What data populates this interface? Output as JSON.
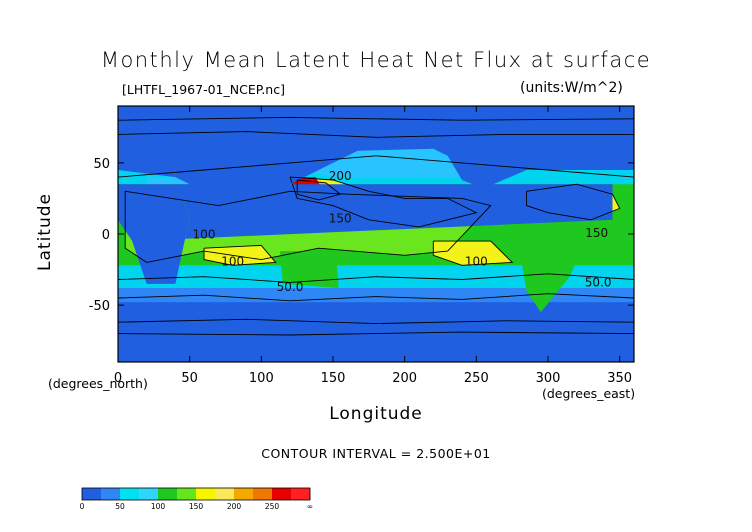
{
  "chart_data": {
    "type": "heatmap",
    "title": "Monthly Mean Latent Heat Net Flux at surface",
    "subtitle": "[LHTFL_1967-01_NCEP.nc]",
    "units": "(units:W/m^2)",
    "xlabel": "Longitude",
    "ylabel": "Latitude",
    "x_units_label": "(degrees_east)",
    "y_units_label": "(degrees_north)",
    "xlim": [
      0,
      360
    ],
    "ylim": [
      -90,
      90
    ],
    "x_ticks": [
      0,
      50,
      100,
      150,
      200,
      250,
      300,
      350
    ],
    "y_ticks": [
      50,
      0,
      -50
    ],
    "contour_interval": "CONTOUR INTERVAL = 2.500E+01",
    "contour_labels": [
      {
        "text": "200",
        "lon": 155,
        "lat": 38
      },
      {
        "text": "150",
        "lon": 155,
        "lat": 8
      },
      {
        "text": "100",
        "lon": 60,
        "lat": -3
      },
      {
        "text": "100",
        "lon": 80,
        "lat": -22
      },
      {
        "text": "100",
        "lon": 250,
        "lat": -22
      },
      {
        "text": "50.0",
        "lon": 120,
        "lat": -40
      },
      {
        "text": "50.0",
        "lon": 335,
        "lat": -37
      },
      {
        "text": "150",
        "lon": 334,
        "lat": -2
      }
    ],
    "colorbar": {
      "levels": [
        "0",
        "50",
        "100",
        "150",
        "200",
        "250",
        "∞"
      ],
      "colors": [
        "#1f5fe0",
        "#2f86f5",
        "#00e1f0",
        "#2fd4ff",
        "#1ec81e",
        "#64e61e",
        "#f5f500",
        "#f8e85a",
        "#f5a800",
        "#f07800",
        "#e80000",
        "#ff2020"
      ]
    },
    "field_colors": {
      "band_0_25": "#1f5fe0",
      "band_25_50": "#2f86f5",
      "band_50_75": "#00d4ef",
      "band_75_100": "#28c4ff",
      "band_100_125": "#1ec81e",
      "band_125_150": "#6ae61e",
      "band_150_175": "#f3f31a",
      "band_175_200": "#f6d85a",
      "band_200_225": "#f5a800",
      "band_225_250": "#f07800",
      "band_250_plus": "#e00000",
      "land_dark_blue": "#0a2aa0"
    }
  }
}
